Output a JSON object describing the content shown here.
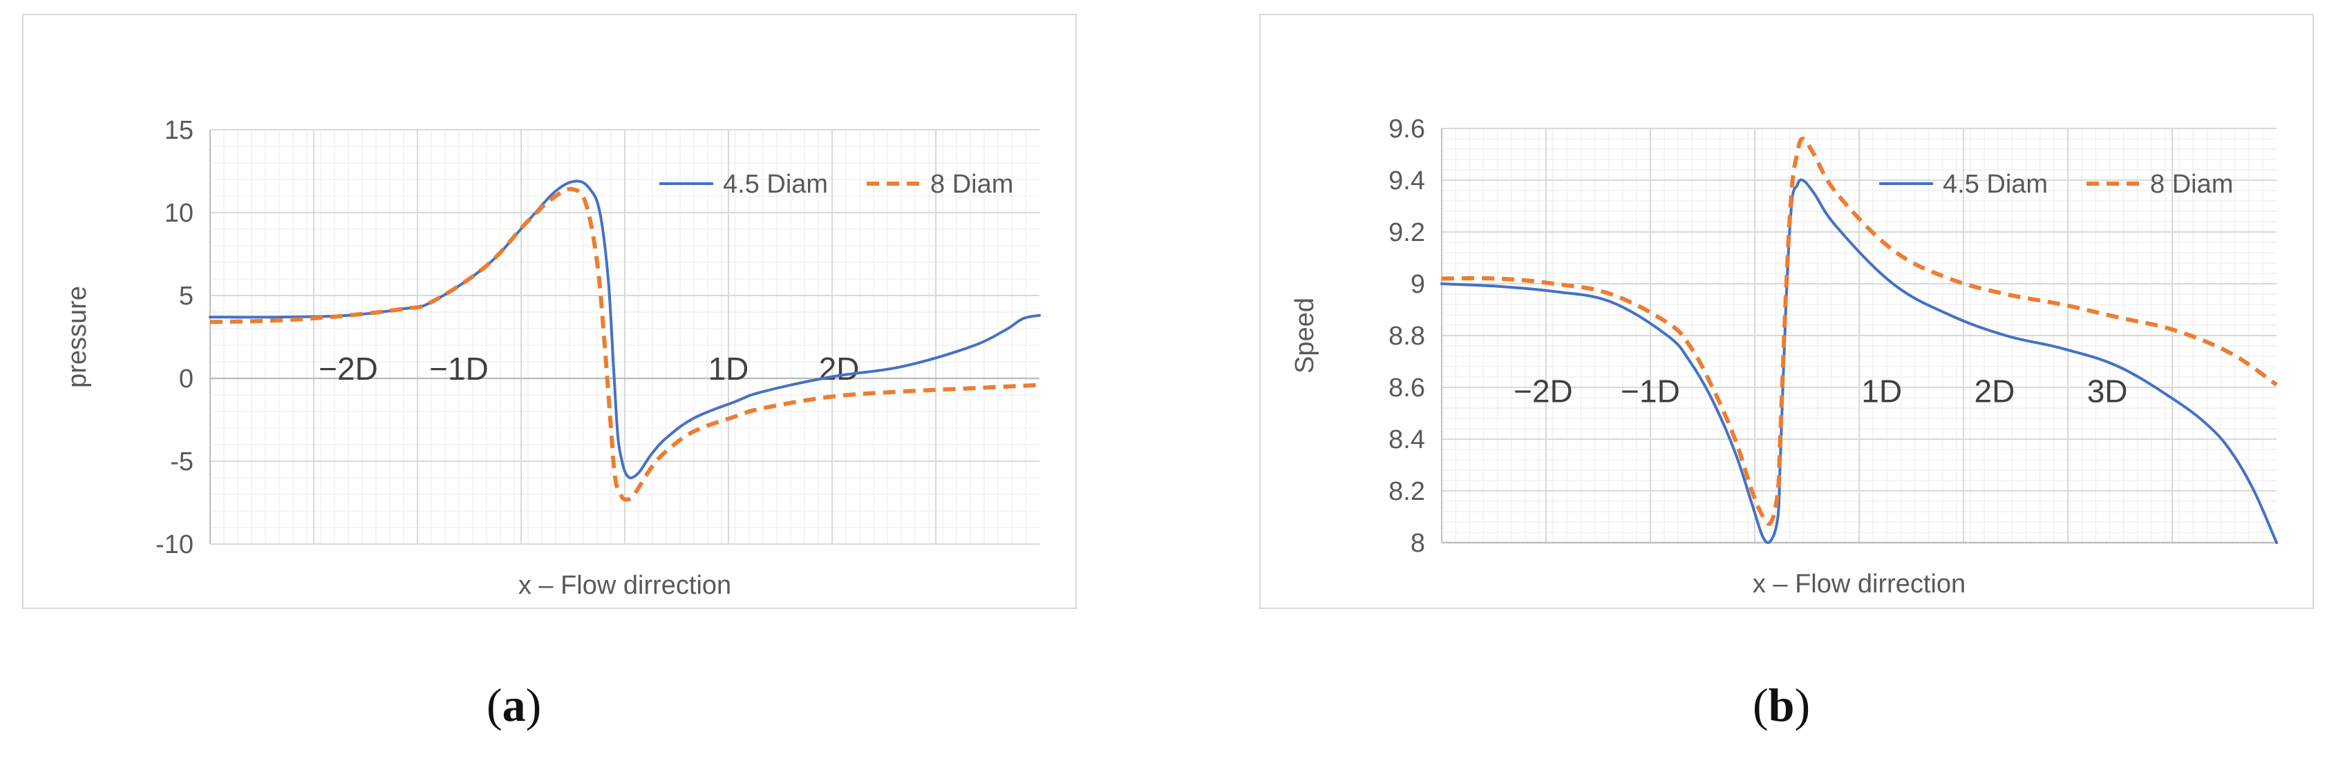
{
  "chart_data": [
    {
      "type": "line",
      "panel": "a",
      "xlabel": "x – Flow dirrection",
      "ylabel": "pressure",
      "xlim": [
        -3,
        3
      ],
      "ylim": [
        -10,
        15
      ],
      "yticks": [
        "-10",
        "-5",
        "0",
        "5",
        "10",
        "15"
      ],
      "grid": true,
      "legend": "top-right",
      "annotations": [
        {
          "text": "−2D",
          "x": -2.0,
          "y": 0.5
        },
        {
          "text": "−1D",
          "x": -1.2,
          "y": 0.5
        },
        {
          "text": "1D",
          "x": 0.75,
          "y": 0.5
        },
        {
          "text": "2D",
          "x": 1.55,
          "y": 0.5
        }
      ],
      "series": [
        {
          "name": "4.5 Diam",
          "color": "#4472C4",
          "dash": "solid",
          "x": [
            -3.0,
            -2.5,
            -2.0,
            -1.6,
            -1.4,
            -1.0,
            -0.7,
            -0.5,
            -0.35,
            -0.25,
            -0.18,
            -0.12,
            -0.08,
            -0.05,
            -0.02,
            0.0,
            0.02,
            0.05,
            0.1,
            0.15,
            0.2,
            0.3,
            0.5,
            0.8,
            1.0,
            1.5,
            2.0,
            2.5,
            2.75,
            2.88,
            3.0
          ],
          "y": [
            3.7,
            3.7,
            3.8,
            4.2,
            4.6,
            6.8,
            9.5,
            11.3,
            11.9,
            11.4,
            10.0,
            6.0,
            0.5,
            -3.5,
            -5.0,
            -5.6,
            -5.9,
            -6.0,
            -5.7,
            -5.1,
            -4.5,
            -3.6,
            -2.4,
            -1.4,
            -0.8,
            0.1,
            0.7,
            1.9,
            2.9,
            3.6,
            3.8
          ]
        },
        {
          "name": "8 Diam",
          "color": "#ED7D31",
          "dash": "dashed",
          "x": [
            -3.0,
            -2.5,
            -2.0,
            -1.6,
            -1.4,
            -1.0,
            -0.7,
            -0.5,
            -0.37,
            -0.28,
            -0.2,
            -0.15,
            -0.1,
            -0.07,
            -0.03,
            0.0,
            0.05,
            0.1,
            0.2,
            0.3,
            0.5,
            0.8,
            1.0,
            1.5,
            2.0,
            2.5,
            3.0
          ],
          "y": [
            3.4,
            3.5,
            3.8,
            4.2,
            4.6,
            6.8,
            9.5,
            11.0,
            11.4,
            10.5,
            7.0,
            2.5,
            -3.0,
            -6.0,
            -7.0,
            -7.3,
            -7.2,
            -6.6,
            -5.3,
            -4.4,
            -3.2,
            -2.3,
            -1.8,
            -1.1,
            -0.8,
            -0.6,
            -0.4
          ]
        }
      ]
    },
    {
      "type": "line",
      "panel": "b",
      "xlabel": "x – Flow dirrection",
      "ylabel": "Speed",
      "xlim": [
        -3,
        4.4
      ],
      "ylim": [
        8,
        9.6
      ],
      "yticks": [
        "8",
        "8.2",
        "8.4",
        "8.6",
        "8.8",
        "9",
        "9.2",
        "9.4",
        "9.6"
      ],
      "grid": true,
      "legend": "top-right",
      "annotations": [
        {
          "text": "−2D",
          "x": -2.1,
          "y": 8.58
        },
        {
          "text": "−1D",
          "x": -1.15,
          "y": 8.58
        },
        {
          "text": "1D",
          "x": 0.9,
          "y": 8.58
        },
        {
          "text": "2D",
          "x": 1.9,
          "y": 8.58
        },
        {
          "text": "3D",
          "x": 2.9,
          "y": 8.58
        }
      ],
      "series": [
        {
          "name": "4.5 Diam",
          "color": "#4472C4",
          "dash": "solid",
          "x": [
            -3.0,
            -2.5,
            -2.0,
            -1.5,
            -1.0,
            -0.8,
            -0.6,
            -0.4,
            -0.25,
            -0.15,
            -0.08,
            -0.02,
            0.0,
            0.05,
            0.1,
            0.15,
            0.2,
            0.3,
            0.5,
            1.0,
            1.5,
            2.0,
            2.5,
            3.0,
            3.5,
            3.8,
            4.0,
            4.2,
            4.4
          ],
          "y": [
            9.0,
            8.99,
            8.97,
            8.93,
            8.8,
            8.7,
            8.55,
            8.35,
            8.15,
            8.02,
            8.01,
            8.1,
            8.3,
            8.9,
            9.3,
            9.38,
            9.4,
            9.35,
            9.22,
            9.0,
            8.88,
            8.8,
            8.75,
            8.68,
            8.55,
            8.45,
            8.35,
            8.2,
            8.0
          ]
        },
        {
          "name": "8 Diam",
          "color": "#ED7D31",
          "dash": "dashed",
          "x": [
            -3.0,
            -2.5,
            -2.0,
            -1.5,
            -1.0,
            -0.8,
            -0.6,
            -0.4,
            -0.25,
            -0.15,
            -0.08,
            -0.02,
            0.0,
            0.05,
            0.1,
            0.15,
            0.2,
            0.3,
            0.5,
            1.0,
            1.5,
            2.0,
            2.5,
            3.0,
            3.5,
            4.0,
            4.4
          ],
          "y": [
            9.02,
            9.02,
            9.0,
            8.96,
            8.85,
            8.76,
            8.6,
            8.4,
            8.2,
            8.1,
            8.08,
            8.2,
            8.4,
            8.95,
            9.35,
            9.5,
            9.56,
            9.5,
            9.35,
            9.13,
            9.02,
            8.96,
            8.92,
            8.87,
            8.82,
            8.73,
            8.61
          ]
        }
      ]
    }
  ],
  "captions": {
    "a": "a",
    "b": "b"
  }
}
